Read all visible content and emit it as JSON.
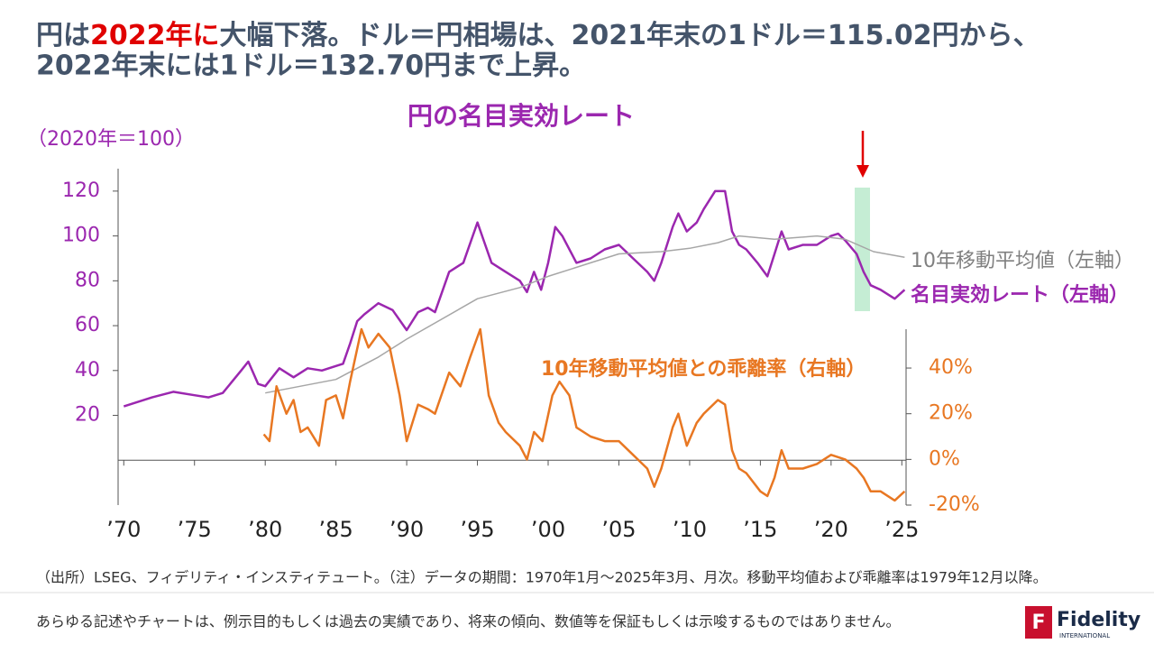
{
  "chart_data": {
    "type": "line",
    "headline": [
      "円は",
      "2022年に",
      "大幅下落。ドル＝円相場は、2021年末の1ドル＝115.02円から、",
      "2022年末には1ドル＝132.70円まで上昇。"
    ],
    "title": "円の名目実効レート",
    "ylabel": "（2020年＝100）",
    "xlim": [
      1969.6,
      2025.3
    ],
    "xticks": [
      {
        "value": 1970,
        "label": "’70"
      },
      {
        "value": 1975,
        "label": "’75"
      },
      {
        "value": 1980,
        "label": "’80"
      },
      {
        "value": 1985,
        "label": "’85"
      },
      {
        "value": 1990,
        "label": "’90"
      },
      {
        "value": 1995,
        "label": "’95"
      },
      {
        "value": 2000,
        "label": "’00"
      },
      {
        "value": 2005,
        "label": "’05"
      },
      {
        "value": 2010,
        "label": "’10"
      },
      {
        "value": 2015,
        "label": "’15"
      },
      {
        "value": 2020,
        "label": "’20"
      },
      {
        "value": 2025,
        "label": "’25"
      }
    ],
    "ylim": [
      -20,
      130
    ],
    "yticks": [
      20,
      40,
      60,
      80,
      100,
      120
    ],
    "y2lim": [
      -20,
      57
    ],
    "y2ticks": [
      {
        "value": -20,
        "label": "-20%"
      },
      {
        "value": 0,
        "label": "0%"
      },
      {
        "value": 20,
        "label": "20%"
      },
      {
        "value": 40,
        "label": "40%"
      }
    ],
    "series": [
      {
        "name": "名目実効レート（左軸）",
        "color": "#9b27af",
        "x": [
          1970,
          1972,
          1973.5,
          1975,
          1976,
          1977,
          1978.3,
          1978.8,
          1979.5,
          1980,
          1981,
          1982,
          1983,
          1984,
          1985,
          1985.5,
          1986,
          1986.5,
          1987,
          1988,
          1989,
          1990,
          1990.8,
          1991.5,
          1992,
          1993,
          1994,
          1995,
          1995.5,
          1996,
          1997,
          1998,
          1998.5,
          1999,
          1999.5,
          2000,
          2000.5,
          2001,
          2002,
          2003,
          2004,
          2005,
          2006,
          2007,
          2007.5,
          2008,
          2008.8,
          2009.2,
          2009.8,
          2010.5,
          2011,
          2011.8,
          2012.5,
          2013,
          2013.5,
          2014,
          2014.8,
          2015.5,
          2016,
          2016.5,
          2017,
          2018,
          2019,
          2020,
          2020.5,
          2021,
          2021.8,
          2022.3,
          2022.8,
          2023.5,
          2024.5,
          2025.2
        ],
        "values": [
          24,
          28,
          30.5,
          29,
          28,
          30,
          40,
          44,
          34,
          33,
          41,
          37,
          41,
          40,
          42,
          43,
          52,
          62,
          65,
          70,
          67,
          58,
          66,
          68,
          66,
          84,
          88,
          106,
          97,
          88,
          84,
          80,
          75,
          84,
          76,
          88,
          104,
          100,
          88,
          90,
          94,
          96,
          90,
          84,
          80,
          88,
          104,
          110,
          102,
          106,
          112,
          120,
          120,
          102,
          96,
          94,
          88,
          82,
          92,
          102,
          94,
          96,
          96,
          100,
          101,
          98,
          92,
          84,
          78,
          76,
          72,
          76
        ]
      },
      {
        "name": "10年移動平均値（左軸）",
        "color": "#a6a6a6",
        "x": [
          1980,
          1985,
          1988,
          1990,
          1995,
          1998,
          2000,
          2003,
          2005,
          2008,
          2010,
          2012,
          2013.5,
          2016,
          2019,
          2021,
          2023,
          2025.2
        ],
        "values": [
          30,
          36,
          46,
          54,
          72,
          77,
          82,
          88,
          92,
          93,
          94.5,
          97,
          100,
          98.5,
          100,
          98.5,
          93,
          90.5
        ]
      },
      {
        "name": "10年移動平均値との乖離率（右軸）",
        "color": "#e87722",
        "axis": "y2",
        "x": [
          1979.9,
          1980.3,
          1980.8,
          1981.5,
          1982,
          1982.5,
          1983,
          1983.8,
          1984.3,
          1985,
          1985.5,
          1986,
          1986.8,
          1987.3,
          1988,
          1988.8,
          1989.5,
          1990,
          1990.8,
          1991.5,
          1992,
          1993,
          1993.8,
          1994.5,
          1995.2,
          1995.8,
          1996.5,
          1997,
          1998,
          1998.5,
          1999,
          1999.6,
          2000.3,
          2000.8,
          2001.5,
          2002,
          2003,
          2004,
          2005,
          2006,
          2007,
          2007.5,
          2008,
          2008.8,
          2009.2,
          2009.8,
          2010.5,
          2011,
          2012,
          2012.5,
          2013,
          2013.5,
          2014,
          2015,
          2015.5,
          2016,
          2016.5,
          2017,
          2018,
          2019,
          2020,
          2021,
          2021.8,
          2022.3,
          2022.8,
          2023.5,
          2024.5,
          2025.2
        ],
        "values": [
          11,
          8,
          32,
          20,
          26,
          12,
          14,
          6,
          26,
          28,
          18,
          34,
          57,
          49,
          55,
          49,
          28,
          8,
          24,
          22,
          20,
          38,
          32,
          45,
          57,
          28,
          16,
          12,
          6,
          0,
          12,
          8,
          28,
          34,
          28,
          14,
          10,
          8,
          8,
          2,
          -4,
          -12,
          -4,
          14,
          20,
          6,
          16,
          20,
          26,
          24,
          4,
          -4,
          -6,
          -14,
          -16,
          -8,
          4,
          -4,
          -4,
          -2,
          2,
          0,
          -4,
          -8,
          -14,
          -14,
          -18,
          -14
        ]
      }
    ],
    "source": "（出所）LSEG、フィデリティ・インスティテュート。（注）データの期間：1970年1月～2025年3月、月次。移動平均値および乖離率は1979年12月以降。",
    "disclaimer": "あらゆる記述やチャートは、例示目的もしくは過去の実績であり、将来の傾向、数値等を保証もしくは示唆するものではありません。",
    "brand": "Fidelity",
    "brand_sub": "INTERNATIONAL"
  }
}
